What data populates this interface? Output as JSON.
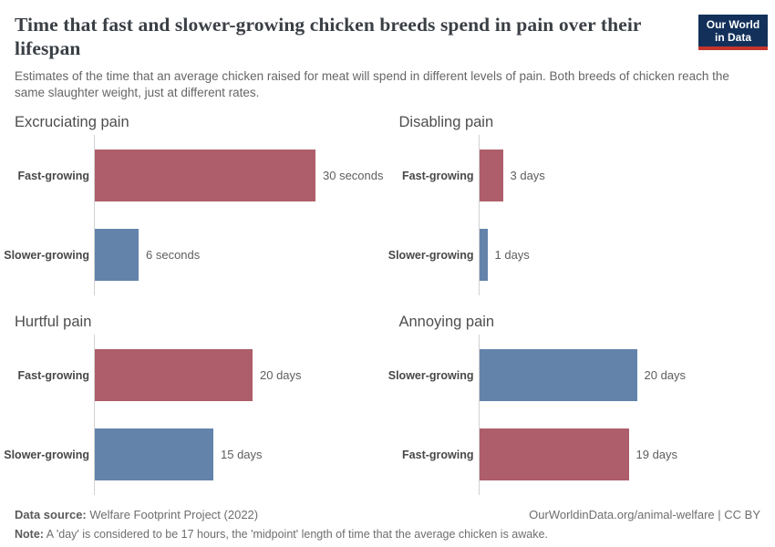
{
  "header": {
    "title": "Time that fast and slower-growing chicken breeds spend in pain over their lifespan",
    "subtitle": "Estimates of the time that an average chicken raised for meat will spend in different levels of pain. Both breeds of chicken reach the same slaughter weight, just at different rates.",
    "logo": {
      "line1": "Our World",
      "line2": "in Data"
    }
  },
  "chart_data": {
    "type": "bar",
    "orientation": "horizontal",
    "grid": "off",
    "legend": "none",
    "colors": {
      "fast_growing": "#ae5e6a",
      "slower_growing": "#6383ab"
    },
    "panels": [
      {
        "title": "Excruciating pain",
        "unit": "seconds",
        "bars": [
          {
            "category": "Fast-growing",
            "value": 30,
            "label": "30 seconds",
            "color": "#ae5e6a"
          },
          {
            "category": "Slower-growing",
            "value": 6,
            "label": "6 seconds",
            "color": "#6383ab"
          }
        ]
      },
      {
        "title": "Disabling pain",
        "unit": "days",
        "bars": [
          {
            "category": "Fast-growing",
            "value": 3,
            "label": "3 days",
            "color": "#ae5e6a"
          },
          {
            "category": "Slower-growing",
            "value": 1,
            "label": "1 days",
            "color": "#6383ab"
          }
        ]
      },
      {
        "title": "Hurtful pain",
        "unit": "days",
        "bars": [
          {
            "category": "Fast-growing",
            "value": 20,
            "label": "20 days",
            "color": "#ae5e6a"
          },
          {
            "category": "Slower-growing",
            "value": 15,
            "label": "15 days",
            "color": "#6383ab"
          }
        ]
      },
      {
        "title": "Annoying pain",
        "unit": "days",
        "bars": [
          {
            "category": "Slower-growing",
            "value": 20,
            "label": "20 days",
            "color": "#6383ab"
          },
          {
            "category": "Fast-growing",
            "value": 19,
            "label": "19 days",
            "color": "#ae5e6a"
          }
        ]
      }
    ]
  },
  "footer": {
    "data_source_label": "Data source:",
    "data_source": "Welfare Footprint Project (2022)",
    "attribution": "OurWorldinData.org/animal-welfare | CC BY",
    "note_label": "Note:",
    "note": "A 'day' is considered to be 17 hours, the 'midpoint' length of time that the average chicken is awake."
  }
}
